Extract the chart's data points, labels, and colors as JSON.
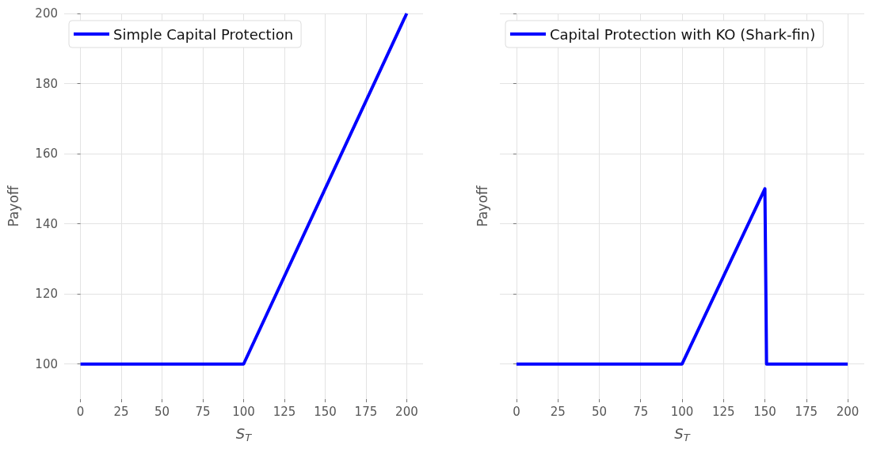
{
  "chart_data": [
    {
      "type": "line",
      "xlabel": "S$_{T}$",
      "ylabel": "Payoff",
      "x": [
        0,
        100,
        200
      ],
      "series": [
        {
          "name": "Simple Capital Protection",
          "color": "#0000ff",
          "values": [
            100,
            100,
            200
          ]
        }
      ],
      "xlim": [
        -10,
        210
      ],
      "ylim": [
        90,
        200
      ],
      "xticks": [
        0,
        25,
        50,
        75,
        100,
        125,
        150,
        175,
        200
      ],
      "yticks": [
        100,
        120,
        140,
        160,
        180,
        200
      ],
      "grid": true,
      "legend": "top left",
      "marker": "none",
      "line_style": "solid"
    },
    {
      "type": "line",
      "xlabel": "S$_{T}$",
      "ylabel": "Payoff",
      "x": [
        0,
        100,
        150,
        151,
        200
      ],
      "series": [
        {
          "name": "Capital Protection with KO (Shark-fin)",
          "color": "#0000ff",
          "values": [
            100,
            100,
            150,
            100,
            100
          ]
        }
      ],
      "xlim": [
        -10,
        210
      ],
      "ylim": [
        90,
        200
      ],
      "xticks": [
        0,
        25,
        50,
        75,
        100,
        125,
        150,
        175,
        200
      ],
      "yticks": [
        100,
        120,
        140,
        160,
        180,
        200
      ],
      "grid": true,
      "legend": "top left",
      "marker": "none",
      "line_style": "solid",
      "tick_labels": "x"
    }
  ]
}
